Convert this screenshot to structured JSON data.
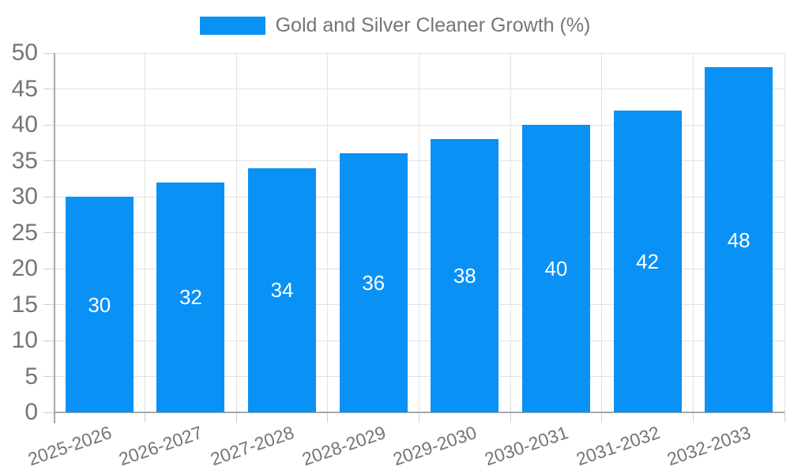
{
  "legend": {
    "label": "Gold and Silver Cleaner Growth (%)"
  },
  "chart_data": {
    "type": "bar",
    "title": "Gold and Silver Cleaner Growth (%)",
    "categories": [
      "2025-2026",
      "2026-2027",
      "2027-2028",
      "2028-2029",
      "2029-2030",
      "2030-2031",
      "2031-2032",
      "2032-2033"
    ],
    "values": [
      30,
      32,
      34,
      36,
      38,
      40,
      42,
      48
    ],
    "value_labels": [
      "30",
      "32",
      "34",
      "36",
      "38",
      "40",
      "42",
      "48"
    ],
    "xlabel": "",
    "ylabel": "",
    "ylim": [
      0,
      50
    ],
    "yticks": [
      0,
      5,
      10,
      15,
      20,
      25,
      30,
      35,
      40,
      45,
      50
    ],
    "grid": true,
    "legend_position": "top-center",
    "x_label_rotation_deg": -19,
    "colors": {
      "bar": "#0a91f5",
      "value_label": "#ffffff",
      "axis_text": "#757575",
      "grid_line": "#e2e2e2",
      "axis_line": "#a8a8a8",
      "tick_line": "#cfcfcf"
    }
  }
}
